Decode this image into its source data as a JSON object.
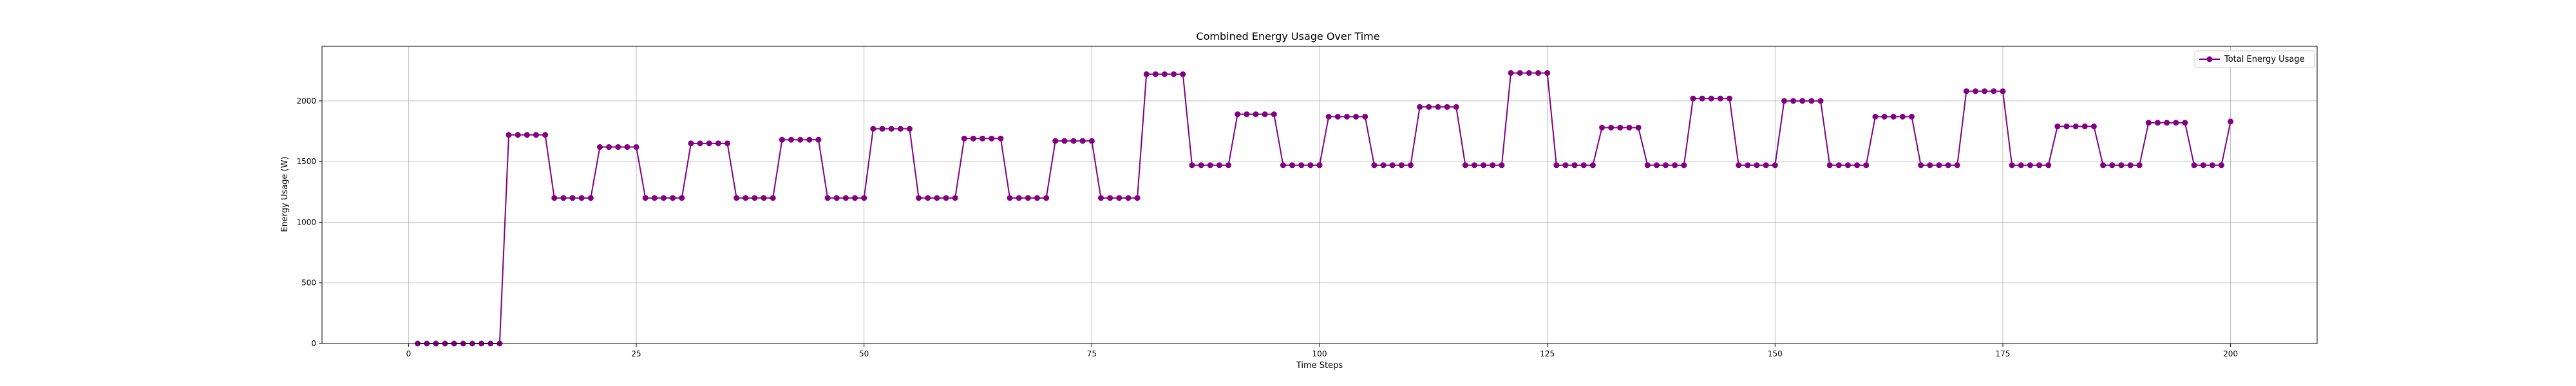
{
  "chart_data": {
    "type": "line",
    "title": "Combined Energy Usage Over Time",
    "xlabel": "Time Steps",
    "ylabel": "Energy Usage (W)",
    "xlim": [
      -9.5,
      209.5
    ],
    "ylim": [
      0,
      2450
    ],
    "xticks": [
      0,
      25,
      50,
      75,
      100,
      125,
      150,
      175,
      200
    ],
    "yticks": [
      0,
      500,
      1000,
      1500,
      2000
    ],
    "grid": true,
    "legend_position": "top-right",
    "colors": {
      "series": "#800080"
    },
    "series": [
      {
        "name": "Total Energy Usage",
        "x": [
          1,
          2,
          3,
          4,
          5,
          6,
          7,
          8,
          9,
          10,
          11,
          12,
          13,
          14,
          15,
          16,
          17,
          18,
          19,
          20,
          21,
          22,
          23,
          24,
          25,
          26,
          27,
          28,
          29,
          30,
          31,
          32,
          33,
          34,
          35,
          36,
          37,
          38,
          39,
          40,
          41,
          42,
          43,
          44,
          45,
          46,
          47,
          48,
          49,
          50,
          51,
          52,
          53,
          54,
          55,
          56,
          57,
          58,
          59,
          60,
          61,
          62,
          63,
          64,
          65,
          66,
          67,
          68,
          69,
          70,
          71,
          72,
          73,
          74,
          75,
          76,
          77,
          78,
          79,
          80,
          81,
          82,
          83,
          84,
          85,
          86,
          87,
          88,
          89,
          90,
          91,
          92,
          93,
          94,
          95,
          96,
          97,
          98,
          99,
          100,
          101,
          102,
          103,
          104,
          105,
          106,
          107,
          108,
          109,
          110,
          111,
          112,
          113,
          114,
          115,
          116,
          117,
          118,
          119,
          120,
          121,
          122,
          123,
          124,
          125,
          126,
          127,
          128,
          129,
          130,
          131,
          132,
          133,
          134,
          135,
          136,
          137,
          138,
          139,
          140,
          141,
          142,
          143,
          144,
          145,
          146,
          147,
          148,
          149,
          150,
          151,
          152,
          153,
          154,
          155,
          156,
          157,
          158,
          159,
          160,
          161,
          162,
          163,
          164,
          165,
          166,
          167,
          168,
          169,
          170,
          171,
          172,
          173,
          174,
          175,
          176,
          177,
          178,
          179,
          180,
          181,
          182,
          183,
          184,
          185,
          186,
          187,
          188,
          189,
          190,
          191,
          192,
          193,
          194,
          195,
          196,
          197,
          198,
          199,
          200
        ],
        "values": [
          0,
          0,
          0,
          0,
          0,
          0,
          0,
          0,
          0,
          0,
          1720,
          1720,
          1720,
          1720,
          1720,
          1200,
          1200,
          1200,
          1200,
          1200,
          1620,
          1620,
          1620,
          1620,
          1620,
          1200,
          1200,
          1200,
          1200,
          1200,
          1650,
          1650,
          1650,
          1650,
          1650,
          1200,
          1200,
          1200,
          1200,
          1200,
          1680,
          1680,
          1680,
          1680,
          1680,
          1200,
          1200,
          1200,
          1200,
          1200,
          1770,
          1770,
          1770,
          1770,
          1770,
          1200,
          1200,
          1200,
          1200,
          1200,
          1690,
          1690,
          1690,
          1690,
          1690,
          1200,
          1200,
          1200,
          1200,
          1200,
          1670,
          1670,
          1670,
          1670,
          1670,
          1200,
          1200,
          1200,
          1200,
          1200,
          2220,
          2220,
          2220,
          2220,
          2220,
          1470,
          1470,
          1470,
          1470,
          1470,
          1890,
          1890,
          1890,
          1890,
          1890,
          1470,
          1470,
          1470,
          1470,
          1470,
          1870,
          1870,
          1870,
          1870,
          1870,
          1470,
          1470,
          1470,
          1470,
          1470,
          1950,
          1950,
          1950,
          1950,
          1950,
          1470,
          1470,
          1470,
          1470,
          1470,
          2230,
          2230,
          2230,
          2230,
          2230,
          1470,
          1470,
          1470,
          1470,
          1470,
          1780,
          1780,
          1780,
          1780,
          1780,
          1470,
          1470,
          1470,
          1470,
          1470,
          2020,
          2020,
          2020,
          2020,
          2020,
          1470,
          1470,
          1470,
          1470,
          1470,
          2000,
          2000,
          2000,
          2000,
          2000,
          1470,
          1470,
          1470,
          1470,
          1470,
          1870,
          1870,
          1870,
          1870,
          1870,
          1470,
          1470,
          1470,
          1470,
          1470,
          2080,
          2080,
          2080,
          2080,
          2080,
          1470,
          1470,
          1470,
          1470,
          1470,
          1790,
          1790,
          1790,
          1790,
          1790,
          1470,
          1470,
          1470,
          1470,
          1470,
          1820,
          1820,
          1820,
          1820,
          1820,
          1470,
          1470,
          1470,
          1470,
          1830
        ]
      }
    ]
  }
}
